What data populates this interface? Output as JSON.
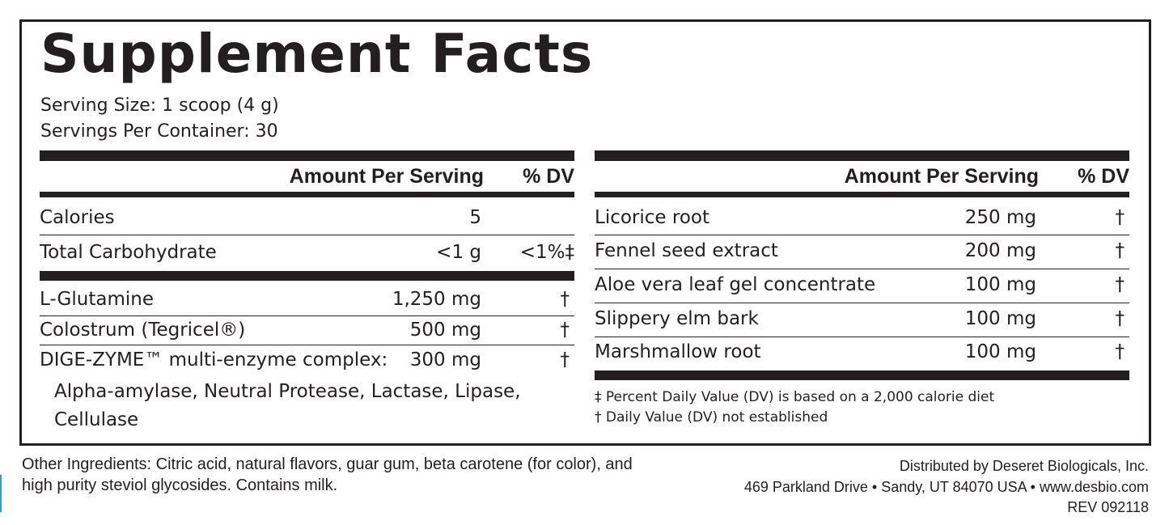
{
  "title": "Supplement Facts",
  "serving_size": "Serving Size:  1 scoop (4 g)",
  "servings_per_container": "Servings Per Container: 30",
  "left": {
    "header_amount": "Amount Per Serving",
    "header_dv": "% DV",
    "rows_a": [
      {
        "name": "Calories",
        "amount": "5",
        "dv": ""
      },
      {
        "name": "Total Carbohydrate",
        "amount": "<1 g",
        "dv": "<1%‡"
      }
    ],
    "rows_b": [
      {
        "name": "L-Glutamine",
        "amount": "1,250 mg",
        "dv": "†"
      },
      {
        "name": "Colostrum (Tegricel®)",
        "amount": "500 mg",
        "dv": "†"
      },
      {
        "name": "DIGE-ZYME™ multi-enzyme complex:",
        "amount": "300 mg",
        "dv": "†"
      }
    ],
    "sub_line1": "Alpha-amylase, Neutral Protease, Lactase, Lipase,",
    "sub_line2": "Cellulase"
  },
  "right": {
    "header_amount": "Amount Per Serving",
    "header_dv": "% DV",
    "rows": [
      {
        "name": "Licorice root",
        "amount": "250 mg",
        "dv": "†"
      },
      {
        "name": "Fennel seed extract",
        "amount": "200 mg",
        "dv": "†"
      },
      {
        "name": "Aloe vera leaf gel concentrate",
        "amount": "100 mg",
        "dv": "†"
      },
      {
        "name": "Slippery elm bark",
        "amount": "100 mg",
        "dv": "†"
      },
      {
        "name": "Marshmallow root",
        "amount": "100 mg",
        "dv": "†"
      }
    ],
    "footnote1": "‡ Percent Daily Value (DV) is based on a 2,000 calorie diet",
    "footnote2": "† Daily Value (DV) not established"
  },
  "other_ingredients_line1": "Other Ingredients: Citric acid, natural flavors, guar gum,  beta carotene (for color), and",
  "other_ingredients_line2": "high purity steviol glycosides. Contains milk.",
  "distributor": "Distributed by Deseret Biologicals, Inc.",
  "address": "469 Parkland Drive • Sandy, UT 84070 USA  • www.desbio.com",
  "revision": "REV 092118",
  "colors": {
    "ink": "#231f20",
    "accent_line": "#2a9fd8"
  }
}
